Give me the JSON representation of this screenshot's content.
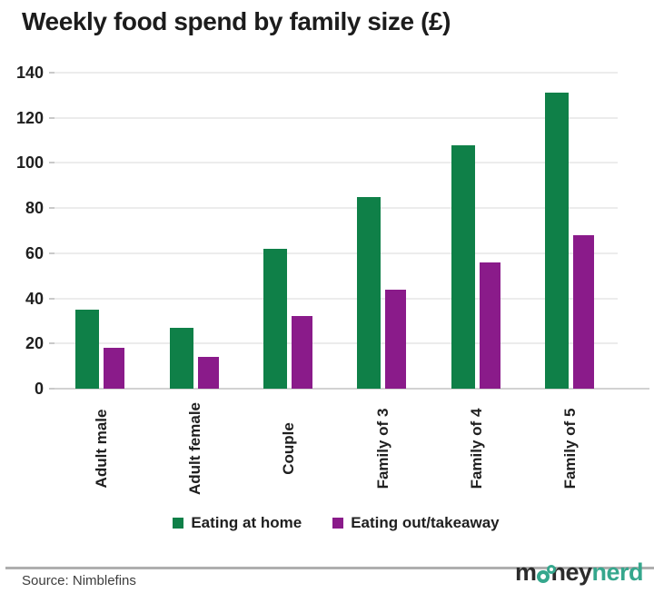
{
  "title": "Weekly food spend by family size (£)",
  "chart_data": {
    "type": "bar",
    "title": "Weekly food spend by family size (£)",
    "categories": [
      "Adult male",
      "Adult female",
      "Couple",
      "Family of 3",
      "Family of 4",
      "Family of 5"
    ],
    "series": [
      {
        "name": "Eating at home",
        "color": "#0f8048",
        "values": [
          35,
          27,
          62,
          85,
          108,
          131
        ]
      },
      {
        "name": "Eating out/takeaway",
        "color": "#8a1b8a",
        "values": [
          18,
          14,
          32,
          44,
          56,
          68
        ]
      }
    ],
    "xlabel": "",
    "ylabel": "",
    "ylim": [
      0,
      140
    ],
    "yticks": [
      0,
      20,
      40,
      60,
      80,
      100,
      120,
      140
    ],
    "grid": true,
    "legend_position": "bottom",
    "xtick_rotation": 90
  },
  "footer": {
    "source_label": "Source: Nimblefins",
    "logo": {
      "money_m": "m",
      "money_ney": "ney",
      "nerd": "nerd"
    }
  },
  "colors": {
    "background": "#ffffff",
    "text": "#1f1f1f",
    "gridline": "#ececec",
    "axis_line": "#d2d2d2",
    "divider": "#aeaeae",
    "eating_at_home_green": "#0f8048",
    "eating_out_purple": "#8a1b8a",
    "logo_black": "#2b2b2b",
    "logo_teal": "#35a78d"
  }
}
